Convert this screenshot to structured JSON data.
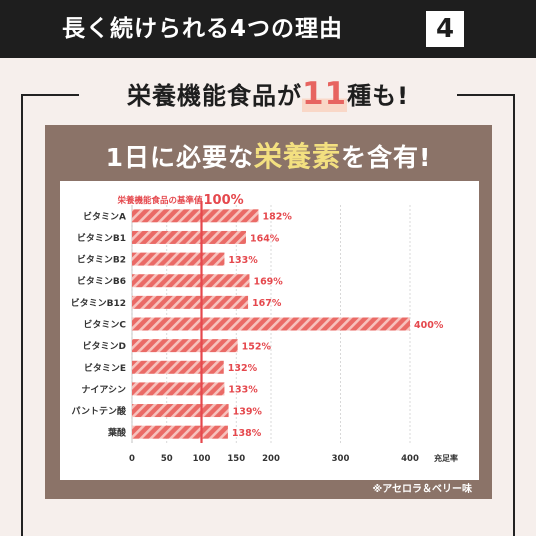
{
  "header": {
    "title": "長く続けられる4つの理由",
    "number": "4"
  },
  "subtitle": {
    "prefix": "栄養機能食品が",
    "highlight": "11",
    "suffix": "種も!"
  },
  "headline": {
    "prefix": "1日に必要な",
    "highlight": "栄養素",
    "suffix": "を含有!"
  },
  "footnote": "※アセロラ＆ベリー味",
  "colors": {
    "bar": "#ea6a66",
    "bar_stripe": "#f7c2bd",
    "reference_line": "#e5484d",
    "value_label": "#e5484d",
    "panel": "#8b7368",
    "headline_highlight": "#f3e080"
  },
  "chart_data": {
    "type": "bar",
    "orientation": "horizontal",
    "categories": [
      "ビタミンA",
      "ビタミンB1",
      "ビタミンB2",
      "ビタミンB6",
      "ビタミンB12",
      "ビタミンC",
      "ビタミンD",
      "ビタミンE",
      "ナイアシン",
      "パントテン酸",
      "葉酸"
    ],
    "values": [
      182,
      164,
      133,
      169,
      167,
      400,
      152,
      132,
      133,
      139,
      138
    ],
    "value_labels": [
      "182%",
      "164%",
      "133%",
      "169%",
      "167%",
      "400%",
      "152%",
      "132%",
      "133%",
      "139%",
      "138%"
    ],
    "xlim": [
      0,
      400
    ],
    "xticks": [
      0,
      50,
      100,
      150,
      200,
      300,
      400
    ],
    "xtick_labels": [
      "0",
      "50",
      "100",
      "150",
      "200",
      "300",
      "400"
    ],
    "x_scale": "piecewise: 0–200 and 200–400 each take half the axis",
    "xlabel": "充足率",
    "grid": "vertical dashed",
    "reference_line": {
      "value": 100,
      "label_prefix": "栄養機能食品の基準値",
      "label_value": "100%"
    }
  }
}
